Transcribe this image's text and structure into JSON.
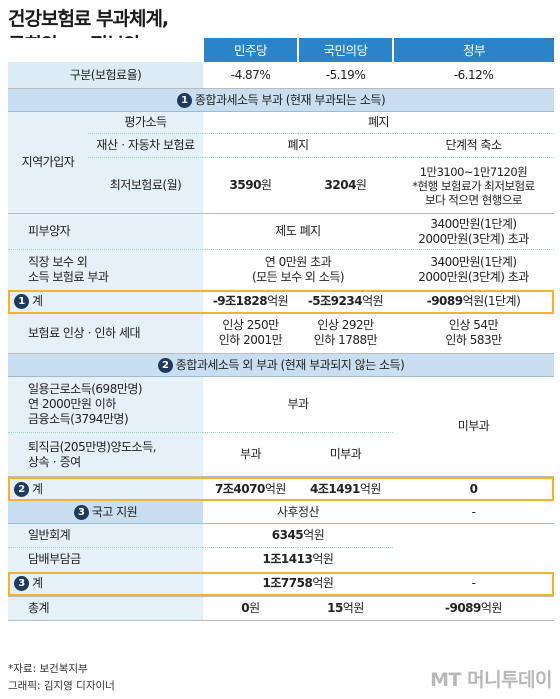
{
  "title_line1": "건강보험료 부과체계,",
  "title_line2": "국회안 vs 정부안",
  "headers": {
    "c1": "민주당",
    "c2": "국민의당",
    "c3": "정부"
  },
  "gubun": {
    "label": "구분(보험료율)",
    "v1": "-4.87%",
    "v2": "-5.19%",
    "v3": "-6.12%"
  },
  "sec1": {
    "num": "1",
    "title": "종합과세소득 부과 (현재 부과되는 소득)"
  },
  "jiyeok": "지역가입자",
  "pyeongga": {
    "label": "평가소득",
    "v": "폐지"
  },
  "jaesan": {
    "label": "재산ㆍ자동차 보험료",
    "v12": "폐지",
    "v3": "단계적 축소"
  },
  "choejeo": {
    "label": "최저보험료(월)",
    "v1a": "3590",
    "v1b": "원",
    "v2a": "3204",
    "v2b": "원",
    "v3l1": "1만3100~1만7120원",
    "v3l2": "*현행 보험료가 최저보험료",
    "v3l3": "보다 적으면 현행으로"
  },
  "pibuyang": {
    "label": "피부양자",
    "v12": "제도 폐지",
    "v3l1": "3400만원(1단계)",
    "v3l2": "2000만원(3단계) 초과"
  },
  "jikjang": {
    "label1": "직장 보수 외",
    "label2": "소득 보험료 부과",
    "v12l1": "연 0만원 초과",
    "v12l2": "(모든 보수 외 소득)",
    "v3l1": "3400만원(1단계)",
    "v3l2": "2000만원(3단계) 초과"
  },
  "sum1": {
    "num": "1",
    "label": "계",
    "v1a": "-9조1828",
    "v1b": "억원",
    "v2a": "-5조9234",
    "v2b": "억원",
    "v3a": "-9089",
    "v3b": "억원(1단계)"
  },
  "inha": {
    "label": "보험료 인상ㆍ인하 세대",
    "v1l1": "인상 250만",
    "v1l2": "인하 2001만",
    "v2l1": "인상 292만",
    "v2l2": "인하 1788만",
    "v3l1": "인상 54만",
    "v3l2": "인하 583만"
  },
  "sec2": {
    "num": "2",
    "title": "종합과세소득 외 부과 (현재 부과되지 않는 소득)"
  },
  "ilyong": {
    "l1": "일용근로소득(698만명)",
    "l2": "연 2000만원 이하",
    "l3": "금융소득(3794만명)",
    "v12": "부과",
    "v3": "미부과"
  },
  "toejik": {
    "l1": "퇴직금(205만명)양도소득,",
    "l2": "상속ㆍ증여",
    "v1": "부과",
    "v2": "미부과"
  },
  "sum2": {
    "num": "2",
    "label": "계",
    "v1a": "7조4070",
    "v1b": "억원",
    "v2a": "4조1491",
    "v2b": "억원",
    "v3": "0"
  },
  "sec3": {
    "num": "3",
    "title": "국고 지원",
    "v12": "사후정산",
    "v3": "-"
  },
  "ilban": {
    "label": "일반회계",
    "va": "6345",
    "vb": "억원",
    "v3": ""
  },
  "dambae": {
    "label": "담배부담금",
    "va": "1조1413",
    "vb": "억원",
    "v3": ""
  },
  "sum3": {
    "num": "3",
    "label": "계",
    "va": "1조7758",
    "vb": "억원",
    "v3": "-"
  },
  "total": {
    "label": "총계",
    "v1a": "0",
    "v1b": "원",
    "v2a": "15",
    "v2b": "억원",
    "v3a": "-9089",
    "v3b": "억원"
  },
  "source": "*자료: 보건복지부",
  "graphic": "그래픽: 김지영 디자이너",
  "logo": "MT 머니투데이"
}
